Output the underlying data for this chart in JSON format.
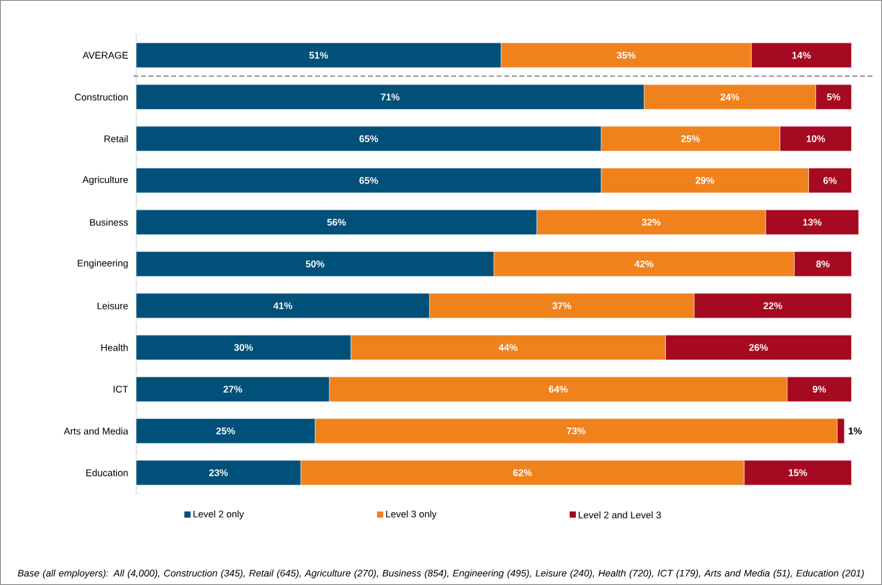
{
  "chart_data": {
    "type": "bar",
    "orientation": "horizontal",
    "stacked": true,
    "categories": [
      "AVERAGE",
      "Construction",
      "Retail",
      "Agriculture",
      "Business",
      "Engineering",
      "Leisure",
      "Health",
      "ICT",
      "Arts and Media",
      "Education"
    ],
    "series": [
      {
        "name": "Level 2 only",
        "color": "#00507a",
        "values": [
          51,
          71,
          65,
          65,
          56,
          50,
          41,
          30,
          27,
          25,
          23
        ],
        "value_labels": [
          "51%",
          "71%",
          "65%",
          "65%",
          "56%",
          "50%",
          "41%",
          "30%",
          "27%",
          "25%",
          "23%"
        ]
      },
      {
        "name": "Level 3 only",
        "color": "#f0821e",
        "values": [
          35,
          24,
          25,
          29,
          32,
          42,
          37,
          44,
          64,
          73,
          62
        ],
        "value_labels": [
          "35%",
          "24%",
          "25%",
          "29%",
          "32%",
          "42%",
          "37%",
          "44%",
          "64%",
          "73%",
          "62%"
        ]
      },
      {
        "name": "Level 2 and Level 3",
        "color": "#a50a21",
        "values": [
          14,
          5,
          10,
          6,
          13,
          8,
          22,
          26,
          9,
          1,
          15
        ],
        "value_labels": [
          "14%",
          "5%",
          "10%",
          "6%",
          "13%",
          "8%",
          "22%",
          "26%",
          "9%",
          "1%",
          "15%"
        ]
      }
    ],
    "legend": "bottom",
    "annotations": [
      "Base (all employers): All (4,000), Construction (345), Retail (645), Agriculture (270), Business (854), Engineering (495), Leisure (240), Health (720), ICT (179), Arts and Media (51), Education (201)"
    ]
  }
}
